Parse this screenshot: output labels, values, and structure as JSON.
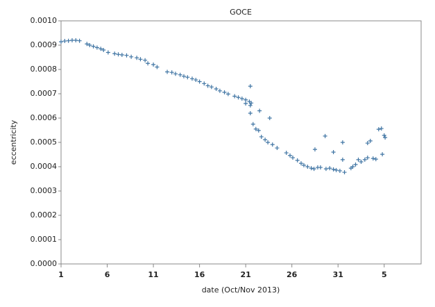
{
  "chart_data": {
    "type": "scatter",
    "title": "GOCE",
    "x_label": "date (Oct/Nov 2013)",
    "y_label": "eccentricity",
    "series": [
      {
        "name": "GOCE",
        "color": "#3f74a3",
        "x": [
          0.0,
          0.4,
          0.8,
          1.2,
          1.6,
          2.0,
          2.8,
          3.1,
          3.5,
          3.9,
          4.3,
          4.6,
          5.1,
          5.8,
          6.2,
          6.6,
          7.1,
          7.6,
          8.2,
          8.6,
          9.1,
          9.4,
          10.0,
          10.4,
          11.5,
          12.0,
          12.4,
          12.9,
          13.3,
          13.7,
          14.2,
          14.6,
          15.0,
          15.5,
          15.9,
          16.3,
          16.8,
          17.2,
          17.7,
          18.1,
          18.8,
          19.2,
          19.6,
          20.0,
          20.4,
          20.0,
          20.5,
          20.5,
          20.6,
          20.5,
          20.8,
          21.1,
          21.4,
          21.5,
          21.7,
          22.1,
          22.4,
          22.6,
          22.9,
          23.4,
          24.4,
          24.8,
          25.1,
          25.6,
          26.0,
          26.3,
          26.7,
          27.1,
          27.4,
          27.5,
          27.8,
          28.1,
          28.6,
          28.7,
          29.1,
          29.5,
          29.5,
          29.8,
          30.2,
          30.5,
          30.5,
          30.7,
          31.4,
          31.6,
          31.9,
          32.2,
          32.5,
          32.9,
          33.2,
          33.2,
          33.5,
          33.8,
          34.1,
          34.4,
          34.7,
          34.8,
          35.0,
          35.1
        ],
        "values": [
          0.000914,
          0.000917,
          0.000918,
          0.00092,
          0.00092,
          0.000918,
          0.000905,
          0.0009,
          0.000895,
          0.00089,
          0.000885,
          0.00088,
          0.00087,
          0.000865,
          0.000862,
          0.00086,
          0.000858,
          0.000852,
          0.000848,
          0.000842,
          0.000838,
          0.000825,
          0.00082,
          0.00081,
          0.00079,
          0.000788,
          0.000782,
          0.000778,
          0.000772,
          0.000768,
          0.000762,
          0.000757,
          0.00075,
          0.000742,
          0.000733,
          0.000728,
          0.00072,
          0.000712,
          0.000706,
          0.000699,
          0.00069,
          0.000685,
          0.00068,
          0.000675,
          0.000668,
          0.00066,
          0.000652,
          0.000731,
          0.000662,
          0.00062,
          0.000575,
          0.000555,
          0.000549,
          0.00063,
          0.000523,
          0.000511,
          0.0005,
          0.0006,
          0.000491,
          0.000477,
          0.000457,
          0.000446,
          0.000437,
          0.000426,
          0.000414,
          0.000406,
          0.0004,
          0.000394,
          0.000391,
          0.000471,
          0.000397,
          0.000397,
          0.000526,
          0.000391,
          0.000394,
          0.00046,
          0.000389,
          0.000386,
          0.000383,
          0.0005,
          0.000429,
          0.000377,
          0.000394,
          0.0004,
          0.000409,
          0.000429,
          0.00042,
          0.000429,
          0.000497,
          0.000437,
          0.000506,
          0.000434,
          0.000431,
          0.000554,
          0.000557,
          0.000451,
          0.000529,
          0.00052
        ]
      }
    ],
    "xlim": [
      0,
      39
    ],
    "xticks": [
      {
        "value": 0,
        "label": "1"
      },
      {
        "value": 5,
        "label": "6"
      },
      {
        "value": 10,
        "label": "11"
      },
      {
        "value": 15,
        "label": "16"
      },
      {
        "value": 20,
        "label": "21"
      },
      {
        "value": 25,
        "label": "26"
      },
      {
        "value": 30,
        "label": "31"
      },
      {
        "value": 35,
        "label": "5"
      }
    ],
    "ylim": [
      0,
      0.001
    ],
    "yticks": [
      {
        "value": 0,
        "label": "0.0000"
      },
      {
        "value": 0.0001,
        "label": "0.0001"
      },
      {
        "value": 0.0002,
        "label": "0.0002"
      },
      {
        "value": 0.0003,
        "label": "0.0003"
      },
      {
        "value": 0.0004,
        "label": "0.0004"
      },
      {
        "value": 0.0005,
        "label": "0.0005"
      },
      {
        "value": 0.0006,
        "label": "0.0006"
      },
      {
        "value": 0.0007,
        "label": "0.0007"
      },
      {
        "value": 0.0008,
        "label": "0.0008"
      },
      {
        "value": 0.0009,
        "label": "0.0009"
      },
      {
        "value": 0.001,
        "label": "0.0010"
      }
    ]
  }
}
